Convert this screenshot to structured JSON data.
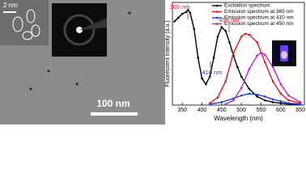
{
  "tem_image": {
    "inset_scale_bar": "2 nm",
    "scale_bar": "100 nm"
  },
  "chart_data": {
    "type": "line",
    "xlabel": "Wavelength (nm)",
    "ylabel": "Fluorescent intensity (a.u.)",
    "xlim": [
      325,
      660
    ],
    "xticks": [
      350,
      400,
      450,
      500,
      550,
      600,
      650
    ],
    "ylim": [
      0,
      108
    ],
    "annotations": [
      "365 nm",
      "450 nm",
      "410 nm"
    ],
    "series": [
      {
        "name": "Excitation spectrum",
        "color": "#000000",
        "x": [
          330,
          340,
          350,
          360,
          365,
          370,
          380,
          390,
          400,
          410,
          420,
          430,
          440,
          450,
          460,
          470,
          480,
          490,
          500,
          520,
          540,
          560,
          580,
          600,
          620,
          650
        ],
        "values": [
          88,
          92,
          96,
          98,
          100,
          97,
          80,
          50,
          28,
          22,
          30,
          50,
          72,
          82,
          78,
          66,
          52,
          40,
          30,
          17,
          9,
          5,
          3,
          2,
          1,
          1
        ]
      },
      {
        "name": "Emission spectrum at 365 nm",
        "color": "#e8141e",
        "x": [
          420,
          440,
          460,
          480,
          500,
          510,
          520,
          540,
          560,
          580,
          600,
          620,
          650
        ],
        "values": [
          2,
          8,
          25,
          55,
          72,
          75,
          74,
          66,
          45,
          25,
          12,
          5,
          2
        ]
      },
      {
        "name": "Emission spectrum at 410 nm",
        "color": "#1f3fd1",
        "x": [
          420,
          450,
          480,
          500,
          520,
          540,
          560,
          580,
          600,
          620,
          650
        ],
        "values": [
          1,
          3,
          7,
          10,
          12,
          11,
          9,
          6,
          4,
          2,
          1
        ]
      },
      {
        "name": "Emission spectrum at 450 nm",
        "color": "#c21bd9",
        "x": [
          460,
          480,
          500,
          520,
          540,
          550,
          560,
          580,
          600,
          620,
          650
        ],
        "values": [
          1,
          5,
          18,
          38,
          52,
          55,
          53,
          40,
          22,
          10,
          3
        ]
      }
    ]
  }
}
